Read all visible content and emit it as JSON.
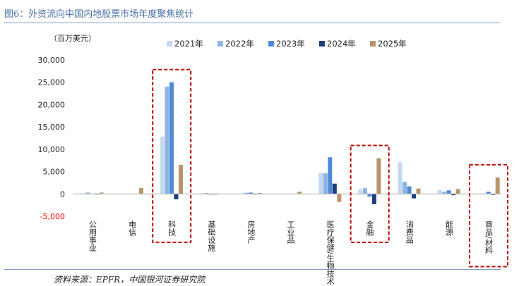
{
  "figure": {
    "title": "图6：外资流向中国内地股票市场年度聚焦统计",
    "source": "资料来源：EPFR，中国银河证券研究院"
  },
  "colors": {
    "series": [
      "#c5d9f1",
      "#8db4e2",
      "#4f89d8",
      "#1f3f7a",
      "#b8956a"
    ],
    "highlight": "#c00000",
    "negative_tick": "#ff0000",
    "rule": "#7f9cc4"
  },
  "chart_data": {
    "type": "bar",
    "unit_label": "（百万美元）",
    "categories": [
      "公用事业",
      "电信",
      "科技",
      "基础设施",
      "房地产",
      "工业品",
      "医疗保健/生物技术",
      "金融",
      "消费品",
      "能源",
      "商品/材料"
    ],
    "series": [
      {
        "name": "2021年",
        "values": [
          100,
          0,
          12800,
          150,
          50,
          0,
          4700,
          1100,
          7100,
          900,
          0
        ]
      },
      {
        "name": "2022年",
        "values": [
          300,
          0,
          24000,
          200,
          250,
          0,
          4600,
          1300,
          2700,
          500,
          100
        ]
      },
      {
        "name": "2023年",
        "values": [
          0,
          0,
          25000,
          -150,
          300,
          0,
          8200,
          -600,
          1700,
          800,
          500
        ]
      },
      {
        "name": "2024年",
        "values": [
          -100,
          0,
          -1200,
          -100,
          -100,
          0,
          2300,
          -2300,
          -1000,
          -300,
          -200
        ]
      },
      {
        "name": "2025年",
        "values": [
          300,
          1300,
          6500,
          0,
          200,
          500,
          -1800,
          8000,
          1200,
          1100,
          3700
        ]
      }
    ],
    "ylim": [
      -5000,
      30000
    ],
    "yticks": [
      "-5,000",
      "0",
      "5,000",
      "10,000",
      "15,000",
      "20,000",
      "25,000",
      "30,000"
    ],
    "ytick_values": [
      -5000,
      0,
      5000,
      10000,
      15000,
      20000,
      25000,
      30000
    ],
    "highlighted_categories": [
      "科技",
      "金融",
      "商品/材料"
    ],
    "legend_position": "top",
    "grid": false
  }
}
